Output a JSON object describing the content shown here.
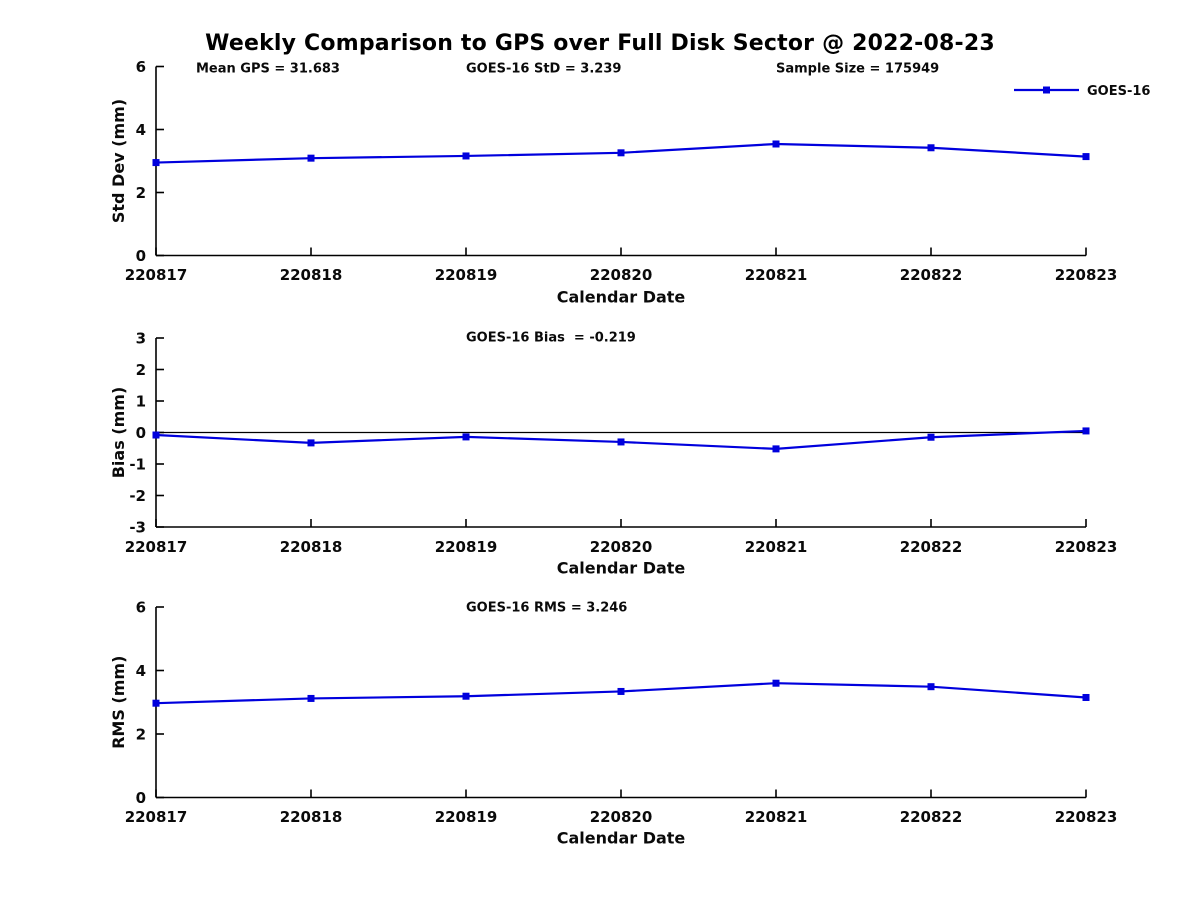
{
  "title": "Weekly Comparison to GPS over Full Disk Sector @ 2022-08-23",
  "legend": {
    "label": "GOES-16"
  },
  "line_color": "#0000DD",
  "chart_data": [
    {
      "type": "line",
      "name": "std-dev",
      "title": "",
      "ylabel": "Std Dev (mm)",
      "xlabel": "Calendar Date",
      "ylim": [
        0,
        6
      ],
      "yticks": [
        0,
        2,
        4,
        6
      ],
      "categories": [
        "220817",
        "220818",
        "220819",
        "220820",
        "220821",
        "220822",
        "220823"
      ],
      "series": [
        {
          "name": "GOES-16",
          "values": [
            2.95,
            3.09,
            3.16,
            3.26,
            3.54,
            3.42,
            3.14
          ]
        }
      ],
      "annotations": [
        "Mean GPS = 31.683",
        "GOES-16 StD = 3.239",
        "Sample Size = 175949"
      ],
      "legend_position": "top-right",
      "grid": false,
      "zero_line": false
    },
    {
      "type": "line",
      "name": "bias",
      "title": "",
      "ylabel": "Bias (mm)",
      "xlabel": "Calendar Date",
      "ylim": [
        -3,
        3
      ],
      "yticks": [
        -3,
        -2,
        -1,
        0,
        1,
        2,
        3
      ],
      "categories": [
        "220817",
        "220818",
        "220819",
        "220820",
        "220821",
        "220822",
        "220823"
      ],
      "series": [
        {
          "name": "GOES-16",
          "values": [
            -0.08,
            -0.33,
            -0.14,
            -0.3,
            -0.52,
            -0.15,
            0.05
          ]
        }
      ],
      "annotations": [
        "GOES-16 Bias  = -0.219"
      ],
      "grid": false,
      "zero_line": true
    },
    {
      "type": "line",
      "name": "rms",
      "title": "",
      "ylabel": "RMS (mm)",
      "xlabel": "Calendar Date",
      "ylim": [
        0,
        6
      ],
      "yticks": [
        0,
        2,
        4,
        6
      ],
      "categories": [
        "220817",
        "220818",
        "220819",
        "220820",
        "220821",
        "220822",
        "220823"
      ],
      "series": [
        {
          "name": "GOES-16",
          "values": [
            2.97,
            3.12,
            3.19,
            3.34,
            3.6,
            3.49,
            3.15
          ]
        }
      ],
      "annotations": [
        "GOES-16 RMS = 3.246"
      ],
      "grid": false,
      "zero_line": false
    }
  ]
}
